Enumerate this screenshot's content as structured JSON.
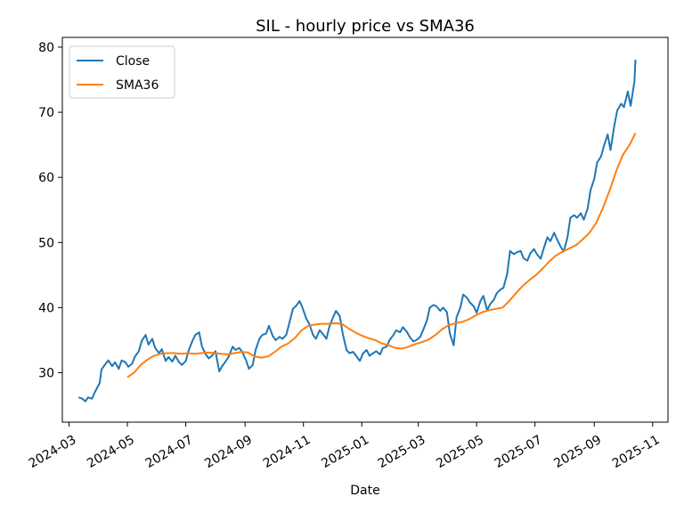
{
  "chart_data": {
    "type": "line",
    "title": "SIL - hourly price vs SMA36",
    "xlabel": "Date",
    "ylabel": "",
    "ylim": [
      22.4,
      81.5
    ],
    "xlim": [
      "2024-02-23",
      "2025-11-17"
    ],
    "grid": false,
    "legend_position": "upper left",
    "x_ticks": [
      "2024-03",
      "2024-05",
      "2024-07",
      "2024-09",
      "2024-11",
      "2025-01",
      "2025-03",
      "2025-05",
      "2025-07",
      "2025-09",
      "2025-11"
    ],
    "y_ticks": [
      30,
      40,
      50,
      60,
      70,
      80
    ],
    "colors": {
      "Close": "#1f77b4",
      "SMA36": "#ff7f0e"
    },
    "series": [
      {
        "name": "Close",
        "points": [
          [
            "2024-03-11",
            26.2
          ],
          [
            "2024-03-15",
            26.0
          ],
          [
            "2024-03-18",
            25.6
          ],
          [
            "2024-03-21",
            26.2
          ],
          [
            "2024-03-25",
            26.0
          ],
          [
            "2024-03-28",
            27.0
          ],
          [
            "2024-04-02",
            28.4
          ],
          [
            "2024-04-04",
            30.5
          ],
          [
            "2024-04-08",
            31.3
          ],
          [
            "2024-04-11",
            31.9
          ],
          [
            "2024-04-15",
            31.0
          ],
          [
            "2024-04-18",
            31.6
          ],
          [
            "2024-04-22",
            30.6
          ],
          [
            "2024-04-25",
            31.9
          ],
          [
            "2024-04-29",
            31.6
          ],
          [
            "2024-05-02",
            30.9
          ],
          [
            "2024-05-06",
            31.4
          ],
          [
            "2024-05-09",
            32.5
          ],
          [
            "2024-05-13",
            33.3
          ],
          [
            "2024-05-16",
            34.9
          ],
          [
            "2024-05-20",
            35.8
          ],
          [
            "2024-05-23",
            34.3
          ],
          [
            "2024-05-27",
            35.2
          ],
          [
            "2024-05-30",
            33.8
          ],
          [
            "2024-06-03",
            33.0
          ],
          [
            "2024-06-06",
            33.6
          ],
          [
            "2024-06-10",
            31.8
          ],
          [
            "2024-06-13",
            32.4
          ],
          [
            "2024-06-17",
            31.7
          ],
          [
            "2024-06-20",
            32.6
          ],
          [
            "2024-06-24",
            31.6
          ],
          [
            "2024-06-27",
            31.2
          ],
          [
            "2024-07-01",
            31.8
          ],
          [
            "2024-07-04",
            33.4
          ],
          [
            "2024-07-08",
            34.9
          ],
          [
            "2024-07-11",
            35.8
          ],
          [
            "2024-07-15",
            36.2
          ],
          [
            "2024-07-18",
            34.0
          ],
          [
            "2024-07-22",
            32.8
          ],
          [
            "2024-07-25",
            32.2
          ],
          [
            "2024-07-29",
            32.7
          ],
          [
            "2024-08-01",
            33.3
          ],
          [
            "2024-08-05",
            30.2
          ],
          [
            "2024-08-08",
            31.0
          ],
          [
            "2024-08-12",
            31.8
          ],
          [
            "2024-08-15",
            32.5
          ],
          [
            "2024-08-19",
            34.0
          ],
          [
            "2024-08-22",
            33.5
          ],
          [
            "2024-08-26",
            33.8
          ],
          [
            "2024-08-29",
            33.2
          ],
          [
            "2024-09-02",
            31.9
          ],
          [
            "2024-09-05",
            30.6
          ],
          [
            "2024-09-09",
            31.2
          ],
          [
            "2024-09-12",
            33.5
          ],
          [
            "2024-09-16",
            35.2
          ],
          [
            "2024-09-19",
            35.8
          ],
          [
            "2024-09-23",
            36.0
          ],
          [
            "2024-09-26",
            37.2
          ],
          [
            "2024-09-30",
            35.6
          ],
          [
            "2024-10-03",
            35.0
          ],
          [
            "2024-10-07",
            35.5
          ],
          [
            "2024-10-10",
            35.2
          ],
          [
            "2024-10-14",
            35.8
          ],
          [
            "2024-10-17",
            37.5
          ],
          [
            "2024-10-21",
            39.8
          ],
          [
            "2024-10-24",
            40.2
          ],
          [
            "2024-10-28",
            41.0
          ],
          [
            "2024-10-31",
            40.0
          ],
          [
            "2024-11-04",
            38.3
          ],
          [
            "2024-11-07",
            37.5
          ],
          [
            "2024-11-11",
            35.8
          ],
          [
            "2024-11-14",
            35.2
          ],
          [
            "2024-11-18",
            36.5
          ],
          [
            "2024-11-21",
            36.0
          ],
          [
            "2024-11-25",
            35.2
          ],
          [
            "2024-11-28",
            37.0
          ],
          [
            "2024-12-02",
            38.5
          ],
          [
            "2024-12-05",
            39.5
          ],
          [
            "2024-12-09",
            38.7
          ],
          [
            "2024-12-12",
            36.0
          ],
          [
            "2024-12-16",
            33.5
          ],
          [
            "2024-12-19",
            33.0
          ],
          [
            "2024-12-23",
            33.2
          ],
          [
            "2024-12-26",
            32.6
          ],
          [
            "2024-12-30",
            31.8
          ],
          [
            "2025-01-02",
            32.9
          ],
          [
            "2025-01-06",
            33.5
          ],
          [
            "2025-01-09",
            32.6
          ],
          [
            "2025-01-13",
            33.0
          ],
          [
            "2025-01-16",
            33.3
          ],
          [
            "2025-01-20",
            32.8
          ],
          [
            "2025-01-23",
            33.8
          ],
          [
            "2025-01-27",
            34.0
          ],
          [
            "2025-01-30",
            35.0
          ],
          [
            "2025-02-03",
            35.8
          ],
          [
            "2025-02-06",
            36.5
          ],
          [
            "2025-02-10",
            36.2
          ],
          [
            "2025-02-13",
            37.0
          ],
          [
            "2025-02-17",
            36.3
          ],
          [
            "2025-02-20",
            35.5
          ],
          [
            "2025-02-24",
            34.8
          ],
          [
            "2025-02-27",
            35.0
          ],
          [
            "2025-03-03",
            35.5
          ],
          [
            "2025-03-06",
            36.5
          ],
          [
            "2025-03-10",
            38.0
          ],
          [
            "2025-03-13",
            40.0
          ],
          [
            "2025-03-17",
            40.4
          ],
          [
            "2025-03-20",
            40.2
          ],
          [
            "2025-03-24",
            39.5
          ],
          [
            "2025-03-27",
            40.0
          ],
          [
            "2025-03-31",
            39.3
          ],
          [
            "2025-04-03",
            36.0
          ],
          [
            "2025-04-07",
            34.2
          ],
          [
            "2025-04-10",
            38.5
          ],
          [
            "2025-04-14",
            40.0
          ],
          [
            "2025-04-17",
            42.0
          ],
          [
            "2025-04-21",
            41.5
          ],
          [
            "2025-04-24",
            40.8
          ],
          [
            "2025-04-28",
            40.2
          ],
          [
            "2025-05-01",
            39.2
          ],
          [
            "2025-05-05",
            41.0
          ],
          [
            "2025-05-08",
            41.8
          ],
          [
            "2025-05-12",
            39.6
          ],
          [
            "2025-05-15",
            40.5
          ],
          [
            "2025-05-19",
            41.2
          ],
          [
            "2025-05-22",
            42.2
          ],
          [
            "2025-05-26",
            42.8
          ],
          [
            "2025-05-29",
            43.0
          ],
          [
            "2025-06-02",
            45.2
          ],
          [
            "2025-06-05",
            48.7
          ],
          [
            "2025-06-09",
            48.2
          ],
          [
            "2025-06-12",
            48.5
          ],
          [
            "2025-06-16",
            48.7
          ],
          [
            "2025-06-19",
            47.6
          ],
          [
            "2025-06-23",
            47.2
          ],
          [
            "2025-06-26",
            48.3
          ],
          [
            "2025-06-30",
            49.0
          ],
          [
            "2025-07-03",
            48.2
          ],
          [
            "2025-07-07",
            47.5
          ],
          [
            "2025-07-10",
            49.0
          ],
          [
            "2025-07-14",
            50.8
          ],
          [
            "2025-07-17",
            50.2
          ],
          [
            "2025-07-21",
            51.5
          ],
          [
            "2025-07-24",
            50.5
          ],
          [
            "2025-07-28",
            49.3
          ],
          [
            "2025-07-31",
            48.6
          ],
          [
            "2025-08-04",
            50.8
          ],
          [
            "2025-08-07",
            53.8
          ],
          [
            "2025-08-11",
            54.2
          ],
          [
            "2025-08-14",
            53.8
          ],
          [
            "2025-08-18",
            54.5
          ],
          [
            "2025-08-21",
            53.5
          ],
          [
            "2025-08-25",
            55.2
          ],
          [
            "2025-08-28",
            58.0
          ],
          [
            "2025-09-01",
            59.8
          ],
          [
            "2025-09-04",
            62.3
          ],
          [
            "2025-09-08",
            63.2
          ],
          [
            "2025-09-11",
            64.8
          ],
          [
            "2025-09-15",
            66.6
          ],
          [
            "2025-09-18",
            64.2
          ],
          [
            "2025-09-22",
            68.0
          ],
          [
            "2025-09-25",
            70.3
          ],
          [
            "2025-09-29",
            71.3
          ],
          [
            "2025-10-02",
            70.8
          ],
          [
            "2025-10-06",
            73.2
          ],
          [
            "2025-10-09",
            71.0
          ],
          [
            "2025-10-13",
            74.8
          ],
          [
            "2025-10-14",
            78.1
          ]
        ]
      },
      {
        "name": "SMA36",
        "points": [
          [
            "2024-05-01",
            29.3
          ],
          [
            "2024-05-08",
            30.0
          ],
          [
            "2024-05-15",
            31.2
          ],
          [
            "2024-05-22",
            32.0
          ],
          [
            "2024-05-29",
            32.6
          ],
          [
            "2024-06-05",
            32.9
          ],
          [
            "2024-06-12",
            33.0
          ],
          [
            "2024-06-19",
            33.0
          ],
          [
            "2024-06-26",
            32.9
          ],
          [
            "2024-07-03",
            33.0
          ],
          [
            "2024-07-10",
            32.9
          ],
          [
            "2024-07-17",
            33.0
          ],
          [
            "2024-07-24",
            33.1
          ],
          [
            "2024-07-31",
            33.0
          ],
          [
            "2024-08-07",
            32.9
          ],
          [
            "2024-08-14",
            32.8
          ],
          [
            "2024-08-21",
            33.0
          ],
          [
            "2024-08-28",
            33.2
          ],
          [
            "2024-09-04",
            33.1
          ],
          [
            "2024-09-11",
            32.5
          ],
          [
            "2024-09-18",
            32.3
          ],
          [
            "2024-09-25",
            32.5
          ],
          [
            "2024-10-02",
            33.2
          ],
          [
            "2024-10-09",
            34.0
          ],
          [
            "2024-10-16",
            34.5
          ],
          [
            "2024-10-23",
            35.3
          ],
          [
            "2024-10-30",
            36.5
          ],
          [
            "2024-11-06",
            37.2
          ],
          [
            "2024-11-13",
            37.4
          ],
          [
            "2024-11-20",
            37.5
          ],
          [
            "2024-11-27",
            37.5
          ],
          [
            "2024-12-04",
            37.6
          ],
          [
            "2024-12-11",
            37.5
          ],
          [
            "2024-12-18",
            36.8
          ],
          [
            "2024-12-25",
            36.2
          ],
          [
            "2025-01-01",
            35.7
          ],
          [
            "2025-01-08",
            35.3
          ],
          [
            "2025-01-15",
            35.0
          ],
          [
            "2025-01-22",
            34.5
          ],
          [
            "2025-01-29",
            34.2
          ],
          [
            "2025-02-05",
            33.8
          ],
          [
            "2025-02-12",
            33.7
          ],
          [
            "2025-02-19",
            34.0
          ],
          [
            "2025-02-26",
            34.4
          ],
          [
            "2025-03-05",
            34.7
          ],
          [
            "2025-03-12",
            35.1
          ],
          [
            "2025-03-19",
            35.8
          ],
          [
            "2025-03-26",
            36.7
          ],
          [
            "2025-04-02",
            37.3
          ],
          [
            "2025-04-09",
            37.6
          ],
          [
            "2025-04-16",
            37.8
          ],
          [
            "2025-04-23",
            38.2
          ],
          [
            "2025-04-30",
            38.8
          ],
          [
            "2025-05-07",
            39.3
          ],
          [
            "2025-05-14",
            39.6
          ],
          [
            "2025-05-21",
            39.8
          ],
          [
            "2025-05-28",
            40.0
          ],
          [
            "2025-06-04",
            41.0
          ],
          [
            "2025-06-11",
            42.2
          ],
          [
            "2025-06-18",
            43.3
          ],
          [
            "2025-06-25",
            44.2
          ],
          [
            "2025-07-02",
            45.0
          ],
          [
            "2025-07-09",
            46.0
          ],
          [
            "2025-07-16",
            47.1
          ],
          [
            "2025-07-23",
            48.0
          ],
          [
            "2025-07-30",
            48.6
          ],
          [
            "2025-08-06",
            49.1
          ],
          [
            "2025-08-13",
            49.6
          ],
          [
            "2025-08-20",
            50.5
          ],
          [
            "2025-08-27",
            51.5
          ],
          [
            "2025-09-03",
            53.0
          ],
          [
            "2025-09-10",
            55.3
          ],
          [
            "2025-09-17",
            58.0
          ],
          [
            "2025-09-24",
            61.0
          ],
          [
            "2025-10-01",
            63.5
          ],
          [
            "2025-10-08",
            65.0
          ],
          [
            "2025-10-14",
            66.8
          ]
        ]
      }
    ]
  }
}
